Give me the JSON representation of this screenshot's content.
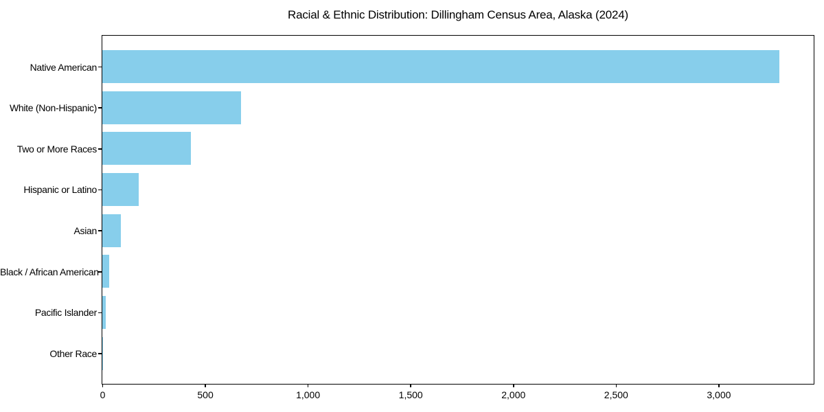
{
  "chart_data": {
    "type": "bar",
    "orientation": "horizontal",
    "title": "Racial & Ethnic Distribution: Dillingham Census Area, Alaska (2024)",
    "categories": [
      "Native American",
      "White (Non-Hispanic)",
      "Two or More Races",
      "Hispanic or Latino",
      "Asian",
      "Black / African American",
      "Pacific Islander",
      "Other Race"
    ],
    "values": [
      3297,
      676,
      430,
      176,
      89,
      32,
      17,
      3
    ],
    "xlabel": "",
    "ylabel": "",
    "xlim": [
      0,
      3460
    ],
    "x_ticks": [
      0,
      500,
      1000,
      1500,
      2000,
      2500,
      3000
    ],
    "x_tick_labels": [
      "0",
      "500",
      "1,000",
      "1,500",
      "2,000",
      "2,500",
      "3,000"
    ],
    "bar_color": "#87CEEB",
    "background_color": "#FFFFFF",
    "axis_color": "#000000",
    "grid": false,
    "legend": null
  }
}
